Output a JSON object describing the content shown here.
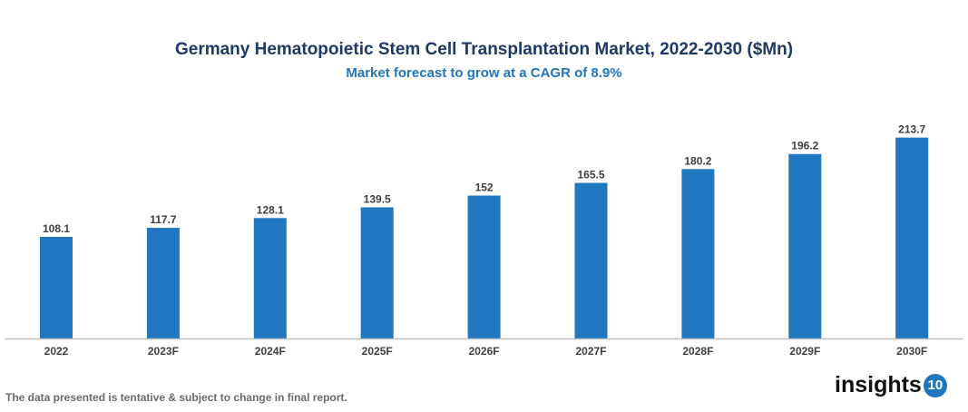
{
  "chart_data": {
    "type": "bar",
    "title": "Germany Hematopoietic Stem Cell Transplantation Market, 2022-2030 ($Mn)",
    "subtitle": "Market forecast to grow at a CAGR of 8.9%",
    "categories": [
      "2022",
      "2023F",
      "2024F",
      "2025F",
      "2026F",
      "2027F",
      "2028F",
      "2029F",
      "2030F"
    ],
    "values": [
      108.1,
      117.7,
      128.1,
      139.5,
      152,
      165.5,
      180.2,
      196.2,
      213.7
    ],
    "labels": [
      "108.1",
      "117.7",
      "128.1",
      "139.5",
      "152",
      "165.5",
      "180.2",
      "196.2",
      "213.7"
    ],
    "xlabel": "",
    "ylabel": "",
    "ylim": [
      0,
      220
    ],
    "grid": false,
    "bar_color": "#1f77c0"
  },
  "footer": "The data presented is tentative & subject to change in final report.",
  "logo": {
    "text": "insights",
    "number": "10"
  }
}
